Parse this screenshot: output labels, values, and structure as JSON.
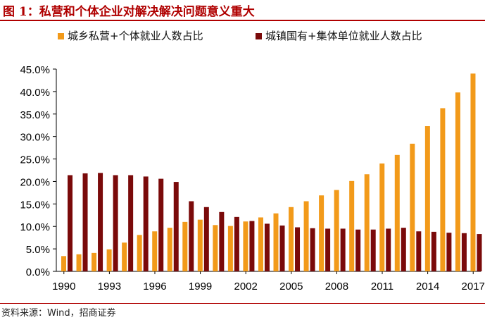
{
  "figure_title": "图 1：私营和个体企业对解决解决问题意义重大",
  "source": "资料来源：Wind，招商证券",
  "colors": {
    "title": "#b00000",
    "series_private": "#f29a1a",
    "series_state": "#7a0a0a"
  },
  "chart_data": {
    "type": "bar",
    "title": "",
    "xlabel": "",
    "ylabel": "",
    "ylim": [
      0,
      45
    ],
    "yticks": [
      "0.0%",
      "5.0%",
      "10.0%",
      "15.0%",
      "20.0%",
      "25.0%",
      "30.0%",
      "35.0%",
      "40.0%",
      "45.0%"
    ],
    "xtick_labels": [
      "1990",
      "1993",
      "1996",
      "1999",
      "2002",
      "2005",
      "2008",
      "2011",
      "2014",
      "2017"
    ],
    "categories": [
      "1990",
      "1991",
      "1992",
      "1993",
      "1994",
      "1995",
      "1996",
      "1997",
      "1998",
      "1999",
      "2000",
      "2001",
      "2002",
      "2003",
      "2004",
      "2005",
      "2006",
      "2007",
      "2008",
      "2009",
      "2010",
      "2011",
      "2012",
      "2013",
      "2014",
      "2015",
      "2016",
      "2017"
    ],
    "legend_position": "top",
    "grid": false,
    "series": [
      {
        "name": "城乡私营+个体就业人数占比",
        "color": "#f29a1a",
        "values": [
          3.4,
          3.8,
          4.1,
          4.9,
          6.4,
          8.1,
          8.9,
          9.7,
          11.0,
          11.5,
          10.3,
          10.1,
          11.1,
          12.0,
          12.9,
          14.3,
          15.6,
          16.9,
          18.1,
          20.1,
          21.6,
          24.0,
          25.9,
          28.4,
          32.3,
          36.3,
          39.8,
          44.0
        ]
      },
      {
        "name": "城镇国有+集体单位就业人数占比",
        "color": "#7a0a0a",
        "values": [
          21.4,
          21.8,
          21.9,
          21.4,
          21.4,
          21.1,
          20.6,
          19.9,
          15.6,
          14.3,
          13.2,
          12.1,
          11.2,
          10.6,
          10.2,
          9.8,
          9.6,
          9.5,
          9.5,
          9.3,
          9.3,
          9.5,
          9.7,
          8.9,
          8.8,
          8.6,
          8.5,
          8.3
        ]
      }
    ]
  }
}
